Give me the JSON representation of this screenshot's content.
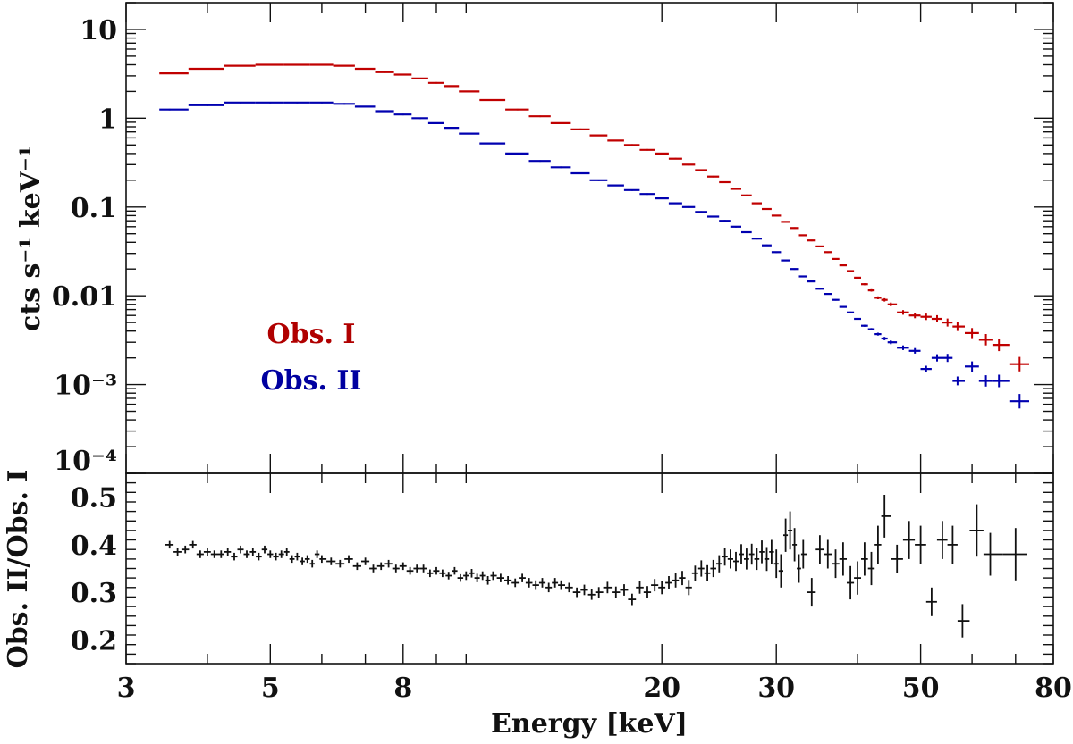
{
  "chart_data": {
    "type": "scatter",
    "xlabel": "Energy [keV]",
    "x_scale": "log",
    "xlim": [
      3,
      80
    ],
    "x_ticks": [
      "3",
      "5",
      "8",
      "20",
      "30",
      "50",
      "80"
    ],
    "panels": {
      "spectrum": {
        "ylabel": "cts s⁻¹ keV⁻¹",
        "y_scale": "log",
        "ylim": [
          0.0001,
          20
        ],
        "y_ticks": [
          "10",
          "1",
          "0.1",
          "0.01",
          "10⁻³",
          "10⁻⁴"
        ],
        "legend": [
          "Obs. I",
          "Obs. II"
        ],
        "legend_colors": [
          "#b00000",
          "#0000a0"
        ],
        "legend_placement": "bottom-left",
        "series": [
          {
            "name": "Obs. I",
            "color": "#c00000",
            "x": [
              3.5,
              4.0,
              4.5,
              5.0,
              5.5,
              6.0,
              6.5,
              7.0,
              7.5,
              8.0,
              8.5,
              9.0,
              9.5,
              10,
              11,
              12,
              13,
              14,
              15,
              16,
              17,
              18,
              19,
              20,
              21,
              22,
              23,
              24,
              25,
              26,
              27,
              28,
              29,
              30,
              31,
              32,
              33,
              34,
              35,
              36,
              37,
              38,
              39,
              40,
              41,
              42,
              43,
              44,
              45,
              47,
              49,
              51,
              53,
              55,
              57,
              60,
              63,
              66,
              71
            ],
            "y": [
              3.2,
              3.6,
              3.9,
              4.0,
              4.0,
              4.0,
              3.9,
              3.6,
              3.3,
              3.1,
              2.8,
              2.5,
              2.3,
              2.0,
              1.6,
              1.25,
              1.05,
              0.88,
              0.75,
              0.64,
              0.56,
              0.5,
              0.44,
              0.4,
              0.35,
              0.3,
              0.26,
              0.22,
              0.19,
              0.16,
              0.135,
              0.11,
              0.095,
              0.08,
              0.068,
              0.058,
              0.048,
              0.042,
              0.036,
              0.031,
              0.026,
              0.022,
              0.019,
              0.016,
              0.0135,
              0.0115,
              0.0095,
              0.009,
              0.008,
              0.0065,
              0.006,
              0.0058,
              0.0055,
              0.005,
              0.0045,
              0.0038,
              0.0032,
              0.0028,
              0.0017
            ]
          },
          {
            "name": "Obs. II",
            "color": "#0000b0",
            "x": [
              3.5,
              4.0,
              4.5,
              5.0,
              5.5,
              6.0,
              6.5,
              7.0,
              7.5,
              8.0,
              8.5,
              9.0,
              9.5,
              10,
              11,
              12,
              13,
              14,
              15,
              16,
              17,
              18,
              19,
              20,
              21,
              22,
              23,
              24,
              25,
              26,
              27,
              28,
              29,
              30,
              31,
              32,
              33,
              34,
              35,
              36,
              37,
              38,
              39,
              40,
              41,
              42,
              43,
              44,
              45,
              47,
              49,
              51,
              53,
              55,
              57,
              60,
              63,
              66,
              71
            ],
            "y": [
              1.25,
              1.4,
              1.5,
              1.5,
              1.5,
              1.5,
              1.45,
              1.35,
              1.2,
              1.1,
              1.0,
              0.88,
              0.78,
              0.67,
              0.52,
              0.4,
              0.33,
              0.28,
              0.24,
              0.2,
              0.175,
              0.155,
              0.14,
              0.125,
              0.11,
              0.1,
              0.088,
              0.078,
              0.07,
              0.06,
              0.052,
              0.044,
              0.037,
              0.031,
              0.025,
              0.02,
              0.0165,
              0.0145,
              0.012,
              0.0105,
              0.009,
              0.0075,
              0.0065,
              0.0055,
              0.0046,
              0.0042,
              0.0037,
              0.0033,
              0.003,
              0.0026,
              0.0024,
              0.0015,
              0.002,
              0.002,
              0.0011,
              0.0016,
              0.0011,
              0.0011,
              0.00065
            ]
          }
        ]
      },
      "ratio": {
        "ylabel": "Obs. II/Obs. I",
        "y_scale": "linear",
        "ylim": [
          0.15,
          0.55
        ],
        "y_ticks": [
          "0.5",
          "0.4",
          "0.3",
          "0.2"
        ],
        "series": [
          {
            "name": "Obs. II/Obs. I",
            "color": "#111111",
            "x": [
              3.5,
              3.6,
              3.7,
              3.8,
              3.9,
              4.0,
              4.1,
              4.2,
              4.3,
              4.4,
              4.5,
              4.6,
              4.7,
              4.8,
              4.9,
              5.0,
              5.1,
              5.2,
              5.3,
              5.4,
              5.5,
              5.6,
              5.7,
              5.8,
              5.9,
              6.0,
              6.2,
              6.4,
              6.6,
              6.8,
              7.0,
              7.2,
              7.4,
              7.6,
              7.8,
              8.0,
              8.2,
              8.4,
              8.6,
              8.8,
              9.0,
              9.2,
              9.4,
              9.6,
              9.8,
              10.0,
              10.2,
              10.4,
              10.6,
              10.8,
              11.0,
              11.3,
              11.6,
              11.9,
              12.2,
              12.5,
              12.8,
              13.1,
              13.4,
              13.7,
              14.0,
              14.4,
              14.8,
              15.2,
              15.6,
              16.0,
              16.5,
              17.0,
              17.5,
              18.0,
              18.5,
              19.0,
              19.5,
              20.0,
              20.5,
              21.0,
              21.5,
              22.0,
              22.5,
              23.0,
              23.5,
              24.0,
              24.5,
              25.0,
              25.5,
              26.0,
              26.5,
              27.0,
              27.5,
              28.0,
              28.5,
              29.0,
              29.5,
              30.0,
              30.5,
              31.0,
              31.5,
              32.0,
              32.5,
              33.0,
              34.0,
              35.0,
              36.0,
              37.0,
              38.0,
              39.0,
              40.0,
              41.0,
              42.0,
              43.0,
              44.0,
              46.0,
              48.0,
              50.0,
              52.0,
              54.0,
              56.0,
              58.0,
              61.0,
              64.0,
              70.0
            ],
            "y": [
              0.4,
              0.385,
              0.39,
              0.4,
              0.38,
              0.385,
              0.38,
              0.38,
              0.385,
              0.375,
              0.39,
              0.38,
              0.385,
              0.375,
              0.39,
              0.38,
              0.375,
              0.38,
              0.385,
              0.37,
              0.375,
              0.365,
              0.37,
              0.36,
              0.38,
              0.37,
              0.365,
              0.36,
              0.37,
              0.355,
              0.365,
              0.35,
              0.355,
              0.36,
              0.35,
              0.355,
              0.345,
              0.35,
              0.35,
              0.34,
              0.345,
              0.34,
              0.335,
              0.345,
              0.33,
              0.335,
              0.34,
              0.33,
              0.335,
              0.325,
              0.335,
              0.33,
              0.325,
              0.32,
              0.33,
              0.32,
              0.315,
              0.32,
              0.31,
              0.32,
              0.315,
              0.31,
              0.3,
              0.305,
              0.295,
              0.3,
              0.31,
              0.3,
              0.305,
              0.285,
              0.31,
              0.3,
              0.315,
              0.31,
              0.32,
              0.325,
              0.33,
              0.31,
              0.34,
              0.35,
              0.34,
              0.35,
              0.36,
              0.375,
              0.37,
              0.365,
              0.38,
              0.37,
              0.38,
              0.37,
              0.385,
              0.37,
              0.385,
              0.36,
              0.345,
              0.42,
              0.43,
              0.4,
              0.35,
              0.38,
              0.3,
              0.39,
              0.38,
              0.36,
              0.37,
              0.32,
              0.33,
              0.37,
              0.35,
              0.4,
              0.46,
              0.37,
              0.41,
              0.4,
              0.28,
              0.41,
              0.4,
              0.24,
              0.43,
              0.38,
              0.38
            ],
            "yerr": [
              0.008,
              0.008,
              0.008,
              0.008,
              0.008,
              0.008,
              0.008,
              0.008,
              0.008,
              0.008,
              0.008,
              0.008,
              0.008,
              0.008,
              0.008,
              0.008,
              0.008,
              0.008,
              0.008,
              0.008,
              0.008,
              0.008,
              0.008,
              0.008,
              0.008,
              0.008,
              0.008,
              0.008,
              0.008,
              0.008,
              0.008,
              0.008,
              0.008,
              0.008,
              0.008,
              0.008,
              0.008,
              0.008,
              0.008,
              0.008,
              0.008,
              0.008,
              0.008,
              0.008,
              0.008,
              0.009,
              0.009,
              0.009,
              0.009,
              0.009,
              0.009,
              0.009,
              0.009,
              0.009,
              0.009,
              0.01,
              0.01,
              0.01,
              0.01,
              0.01,
              0.01,
              0.01,
              0.01,
              0.011,
              0.011,
              0.011,
              0.012,
              0.012,
              0.012,
              0.012,
              0.013,
              0.013,
              0.013,
              0.014,
              0.014,
              0.015,
              0.015,
              0.016,
              0.016,
              0.017,
              0.017,
              0.018,
              0.018,
              0.019,
              0.02,
              0.02,
              0.021,
              0.022,
              0.022,
              0.023,
              0.024,
              0.025,
              0.025,
              0.03,
              0.035,
              0.035,
              0.04,
              0.035,
              0.03,
              0.03,
              0.03,
              0.03,
              0.03,
              0.03,
              0.035,
              0.035,
              0.035,
              0.035,
              0.035,
              0.04,
              0.045,
              0.03,
              0.04,
              0.04,
              0.03,
              0.04,
              0.04,
              0.035,
              0.055,
              0.045,
              0.055
            ]
          }
        ]
      }
    }
  }
}
